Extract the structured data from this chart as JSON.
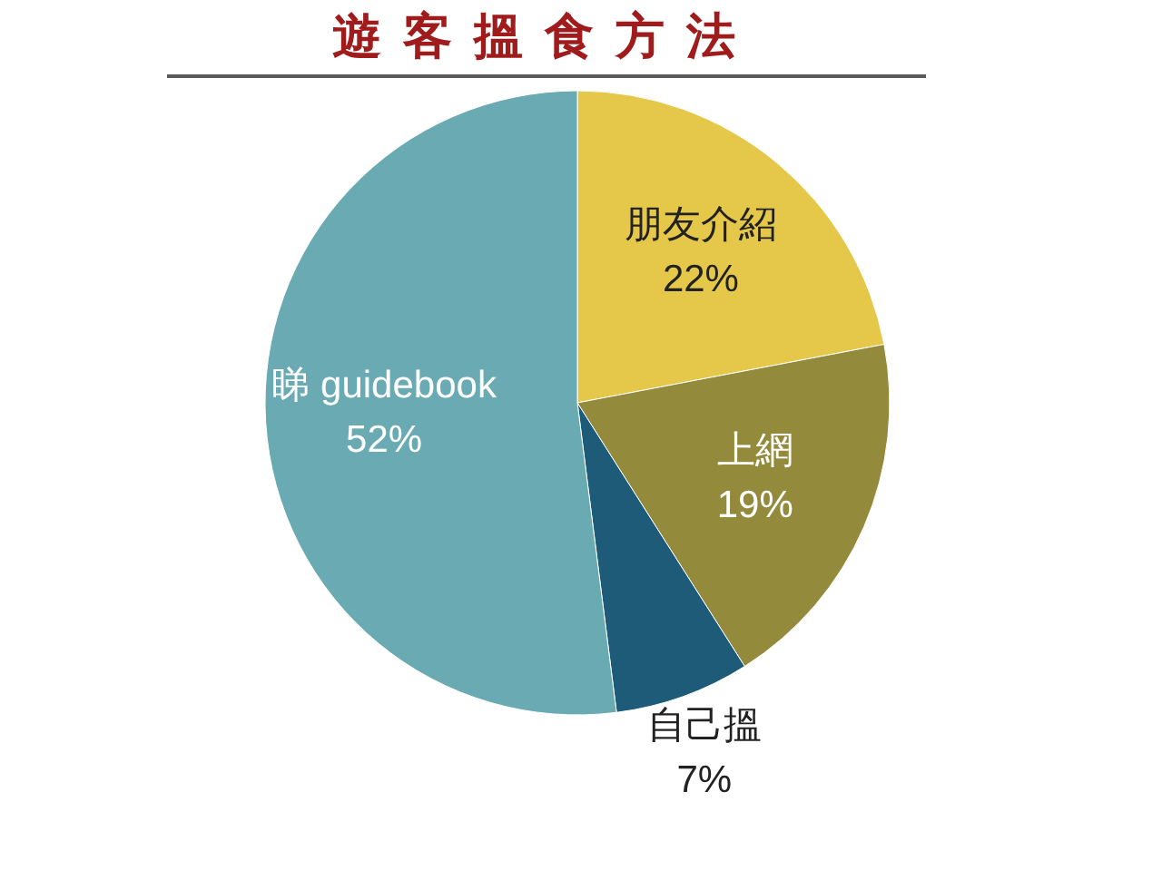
{
  "chart_data": {
    "type": "pie",
    "title": "遊客搵食方法",
    "categories": [
      "朋友介紹",
      "上網",
      "自己搵",
      "睇 guidebook"
    ],
    "values": [
      22,
      19,
      7,
      52
    ],
    "colors": [
      "#e5c84a",
      "#948a3c",
      "#1d5b78",
      "#6aabb3"
    ],
    "value_labels": [
      "22%",
      "19%",
      "7%",
      "52%"
    ]
  }
}
